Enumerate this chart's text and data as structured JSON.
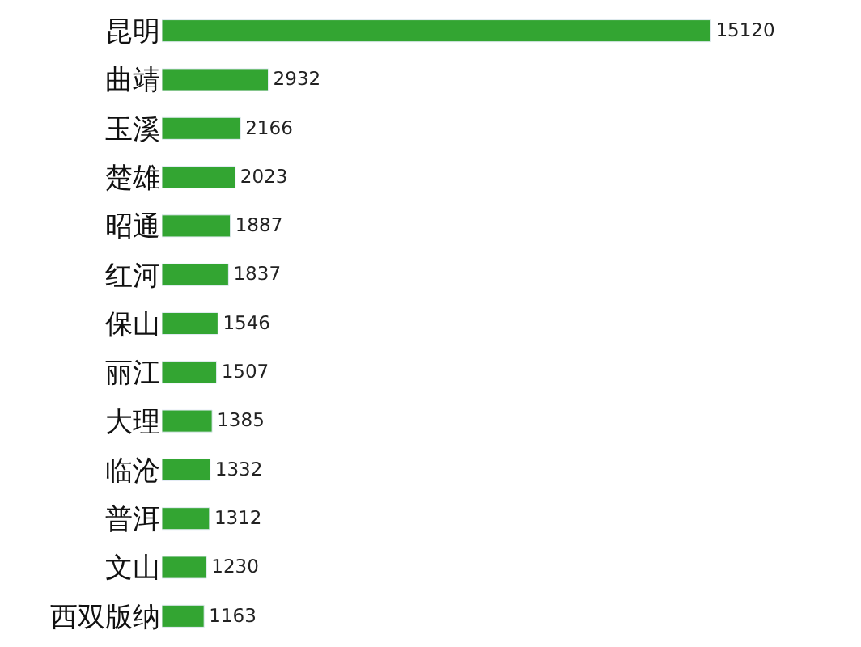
{
  "chart_data": {
    "type": "bar",
    "orientation": "horizontal",
    "categories": [
      "昆明",
      "曲靖",
      "玉溪",
      "楚雄",
      "昭通",
      "红河",
      "保山",
      "丽江",
      "大理",
      "临沧",
      "普洱",
      "文山",
      "西双版纳"
    ],
    "values": [
      15120,
      2932,
      2166,
      2023,
      1887,
      1837,
      1546,
      1507,
      1385,
      1332,
      1312,
      1230,
      1163
    ],
    "color": "#33a532",
    "data_labels": true,
    "tick_labels": "y"
  }
}
